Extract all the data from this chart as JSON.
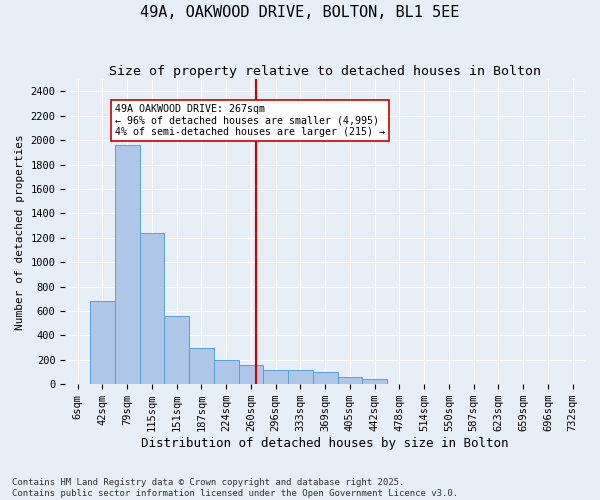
{
  "title": "49A, OAKWOOD DRIVE, BOLTON, BL1 5EE",
  "subtitle": "Size of property relative to detached houses in Bolton",
  "xlabel": "Distribution of detached houses by size in Bolton",
  "ylabel": "Number of detached properties",
  "bins": [
    "6sqm",
    "42sqm",
    "79sqm",
    "115sqm",
    "151sqm",
    "187sqm",
    "224sqm",
    "260sqm",
    "296sqm",
    "333sqm",
    "369sqm",
    "405sqm",
    "442sqm",
    "478sqm",
    "514sqm",
    "550sqm",
    "587sqm",
    "623sqm",
    "659sqm",
    "696sqm",
    "732sqm"
  ],
  "bar_values": [
    0,
    680,
    1960,
    1240,
    560,
    300,
    200,
    160,
    120,
    120,
    100,
    60,
    40,
    0,
    0,
    0,
    0,
    0,
    0,
    0,
    0
  ],
  "bar_color": "#aec6e8",
  "bar_edge_color": "#5a9fd4",
  "bg_color": "#e8eef5",
  "grid_color": "#ffffff",
  "vline_color": "#cc0000",
  "annotation_text": "49A OAKWOOD DRIVE: 267sqm\n← 96% of detached houses are smaller (4,995)\n4% of semi-detached houses are larger (215) →",
  "annotation_box_color": "#ffffff",
  "ylim": [
    0,
    2500
  ],
  "yticks": [
    0,
    200,
    400,
    600,
    800,
    1000,
    1200,
    1400,
    1600,
    1800,
    2000,
    2200,
    2400
  ],
  "footer": "Contains HM Land Registry data © Crown copyright and database right 2025.\nContains public sector information licensed under the Open Government Licence v3.0.",
  "title_fontsize": 11,
  "subtitle_fontsize": 9.5,
  "xlabel_fontsize": 9,
  "ylabel_fontsize": 8,
  "tick_fontsize": 7.5,
  "footer_fontsize": 6.5
}
